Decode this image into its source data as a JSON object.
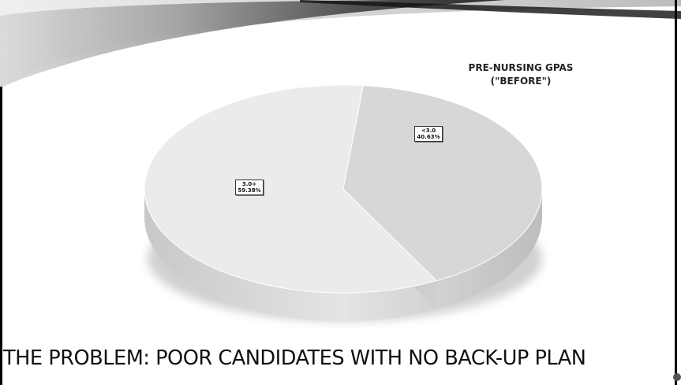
{
  "slide": {
    "footer_title": "THE PROBLEM: POOR CANDIDATES WITH NO BACK-UP PLAN"
  },
  "chart_data": {
    "type": "pie",
    "title": [
      "PRE-NURSING GPAS",
      "(\"BEFORE\")"
    ],
    "categories": [
      "3.0+",
      "<3.0"
    ],
    "values": [
      59.38,
      40.63
    ],
    "value_labels": [
      "59.38%",
      "40.63%"
    ],
    "unit": "%",
    "style": "3d",
    "colors": [
      "#ebebeb",
      "#d7d7d7"
    ],
    "legend": "none"
  }
}
